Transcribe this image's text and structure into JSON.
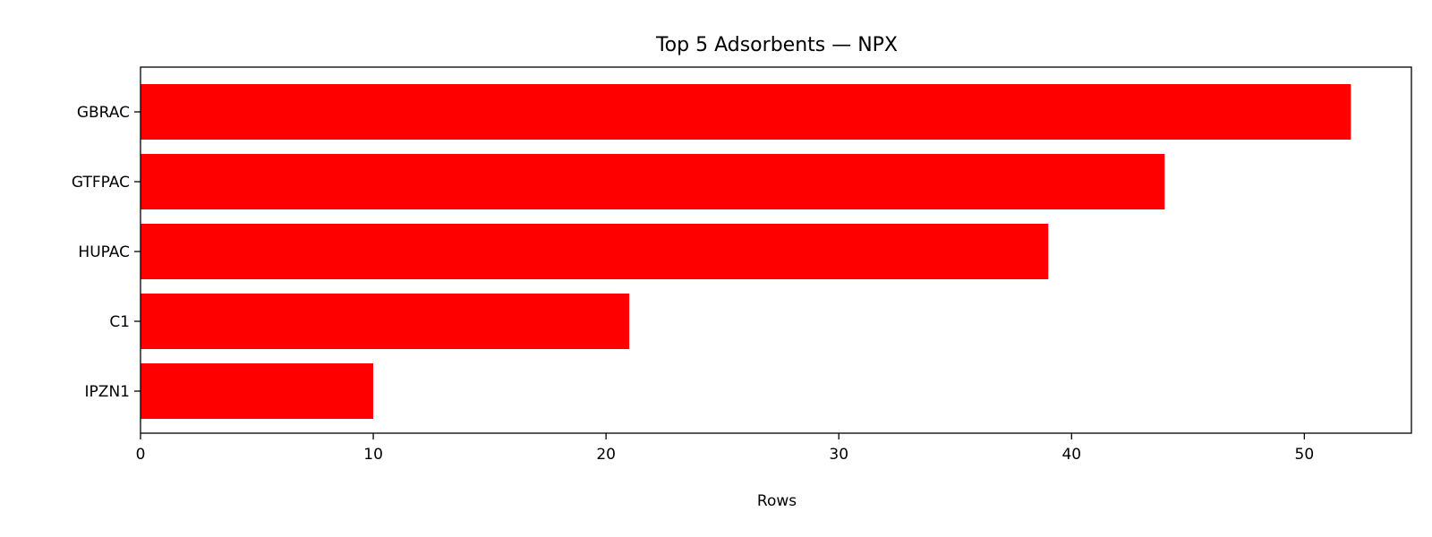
{
  "chart_data": {
    "type": "bar",
    "orientation": "horizontal",
    "title": "Top 5 Adsorbents — NPX",
    "xlabel": "Rows",
    "ylabel": "",
    "categories": [
      "GBRAC",
      "GTFPAC",
      "HUPAC",
      "C1",
      "IPZN1"
    ],
    "values": [
      52,
      44,
      39,
      21,
      10
    ],
    "xlim": [
      0,
      54.6
    ],
    "xticks": [
      0,
      10,
      20,
      30,
      40,
      50
    ],
    "grid": false,
    "bar_color": "#ff0000"
  }
}
